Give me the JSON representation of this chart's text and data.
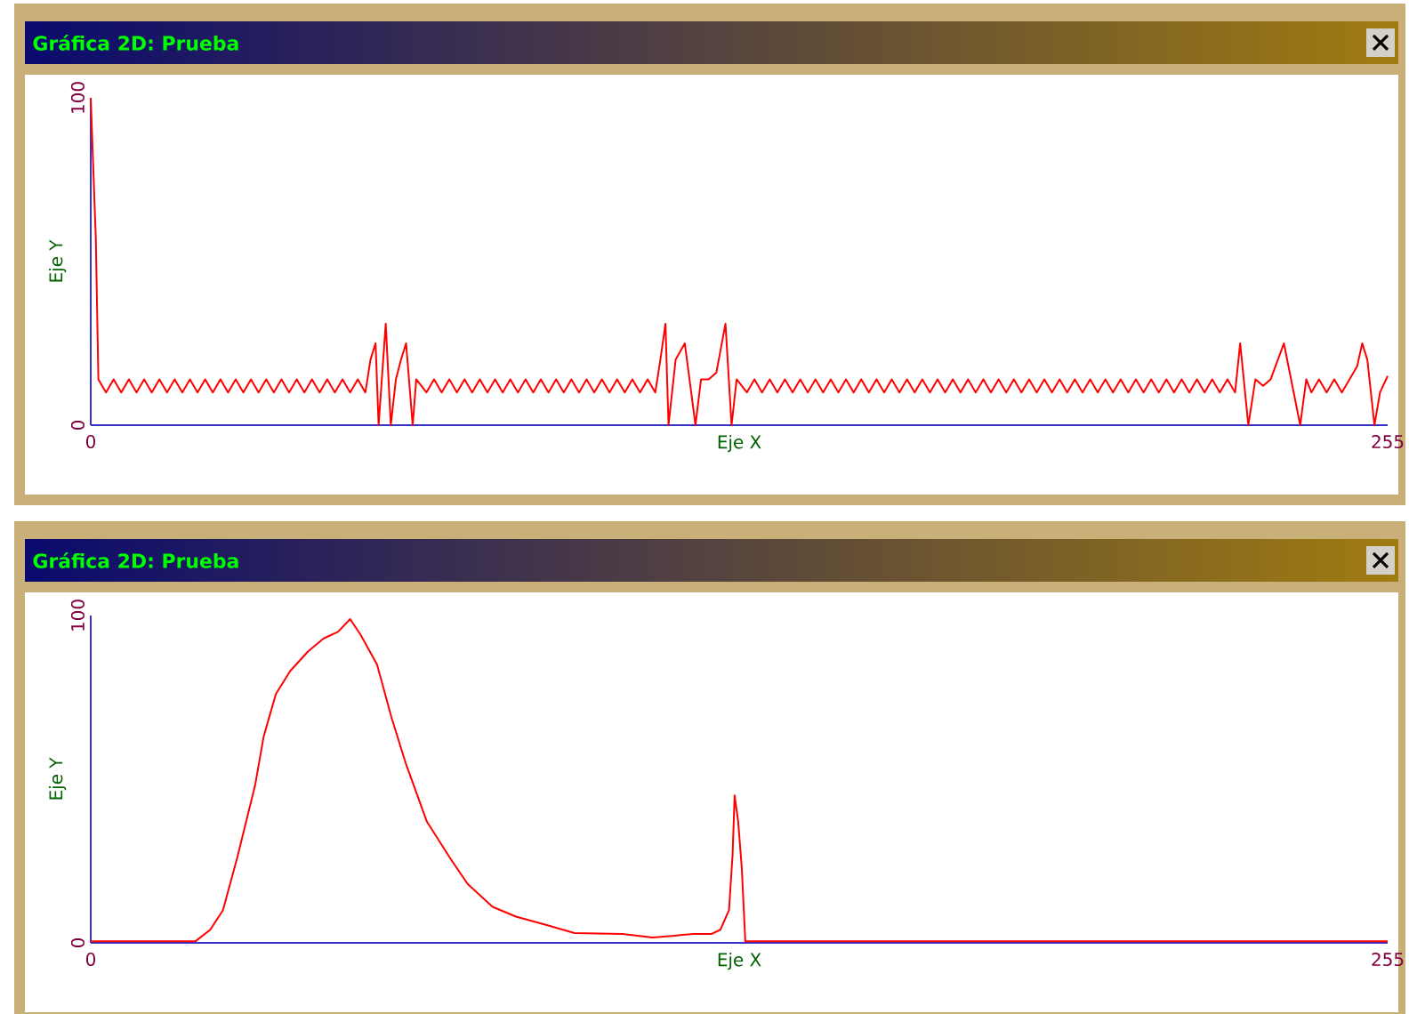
{
  "chart_data": [
    {
      "type": "line",
      "title": "Gráfica 2D: Prueba",
      "xlabel": "Eje X",
      "ylabel": "Eje Y",
      "xlim": [
        0,
        255
      ],
      "ylim": [
        0,
        100
      ],
      "xticks": [
        0,
        255
      ],
      "yticks": [
        0,
        100
      ],
      "series": [
        {
          "color": "#ff0000",
          "x": [
            0,
            1,
            1.5,
            3,
            4.5,
            6,
            7.5,
            9,
            10.5,
            12,
            13.5,
            15,
            16.5,
            18,
            19.5,
            21,
            22.5,
            24,
            25.5,
            27,
            28.5,
            30,
            31.5,
            33,
            34.5,
            36,
            37.5,
            39,
            40.5,
            42,
            43.5,
            45,
            46.5,
            48,
            49.5,
            51,
            52.5,
            54,
            55,
            56,
            56.6,
            57.5,
            58,
            59,
            60,
            61,
            62,
            63.3,
            64,
            66,
            67.5,
            69,
            70.5,
            72,
            73.5,
            75,
            76.5,
            78,
            79.5,
            81,
            82.5,
            84,
            85.5,
            87,
            88.5,
            90,
            91.5,
            93,
            94.5,
            96,
            97.5,
            99,
            100.5,
            102,
            103.5,
            105,
            106.5,
            108,
            109.5,
            111,
            112,
            113,
            113.6,
            115,
            116.8,
            118.9,
            120,
            121.5,
            123,
            124.8,
            126,
            127,
            129,
            130.5,
            132,
            133.5,
            135,
            136.5,
            138,
            139.5,
            141,
            142.5,
            144,
            145.5,
            147,
            148.5,
            150,
            151.5,
            153,
            154.5,
            156,
            157.5,
            159,
            160.5,
            162,
            163.5,
            165,
            166.5,
            168,
            169.5,
            171,
            172.5,
            174,
            175.5,
            177,
            178.5,
            180,
            181.5,
            183,
            184.5,
            186,
            187.5,
            189,
            190.5,
            192,
            193.5,
            195,
            196.5,
            198,
            199.5,
            201,
            202.5,
            204,
            205.5,
            207,
            208.5,
            210,
            211.5,
            213,
            214.5,
            216,
            217.5,
            219,
            220.5,
            222,
            223.5,
            225,
            226,
            227.6,
            229,
            230.5,
            232,
            234.6,
            237.8,
            239,
            240,
            241.5,
            243,
            244.5,
            246,
            247.5,
            249,
            250,
            251,
            252.4,
            253.5,
            255
          ],
          "values": [
            100,
            57,
            14,
            10,
            14,
            10,
            14,
            10,
            14,
            10,
            14,
            10,
            14,
            10,
            14,
            10,
            14,
            10,
            14,
            10,
            14,
            10,
            14,
            10,
            14,
            10,
            14,
            10,
            14,
            10,
            14,
            10,
            14,
            10,
            14,
            10,
            14,
            10,
            20,
            25,
            0,
            20,
            31,
            0,
            14,
            20,
            25,
            0,
            14,
            10,
            14,
            10,
            14,
            10,
            14,
            10,
            14,
            10,
            14,
            10,
            14,
            10,
            14,
            10,
            14,
            10,
            14,
            10,
            14,
            10,
            14,
            10,
            14,
            10,
            14,
            10,
            14,
            10,
            14,
            10,
            20,
            31,
            0,
            20,
            25,
            0,
            14,
            14,
            16,
            31,
            0,
            14,
            10,
            14,
            10,
            14,
            10,
            14,
            10,
            14,
            10,
            14,
            10,
            14,
            10,
            14,
            10,
            14,
            10,
            14,
            10,
            14,
            10,
            14,
            10,
            14,
            10,
            14,
            10,
            14,
            10,
            14,
            10,
            14,
            10,
            14,
            10,
            14,
            10,
            14,
            10,
            14,
            10,
            14,
            10,
            14,
            10,
            14,
            10,
            14,
            10,
            14,
            10,
            14,
            10,
            14,
            10,
            14,
            10,
            14,
            10,
            14,
            10,
            14,
            10,
            14,
            10,
            25,
            0,
            14,
            12,
            14,
            25,
            0,
            14,
            10,
            14,
            10,
            14,
            10,
            14,
            18,
            25,
            20,
            0,
            10,
            15
          ]
        }
      ]
    },
    {
      "type": "line",
      "title": "Gráfica 2D: Prueba",
      "xlabel": "Eje X",
      "ylabel": "Eje Y",
      "xlim": [
        0,
        255
      ],
      "ylim": [
        0,
        100
      ],
      "xticks": [
        0,
        255
      ],
      "yticks": [
        0,
        100
      ],
      "series": [
        {
          "color": "#ff0000",
          "x": [
            0,
            20.6,
            23.5,
            26,
            28.8,
            32.3,
            34,
            36.4,
            39.2,
            42.7,
            45.8,
            48.6,
            51,
            53.1,
            56.3,
            59.1,
            61.9,
            66.1,
            70.6,
            74.1,
            79,
            83.6,
            89.5,
            95.1,
            104.5,
            110.5,
            118.5,
            122,
            123.8,
            125.5,
            126.2,
            126.6,
            127.3,
            128,
            128.7,
            255
          ],
          "values": [
            0.5,
            0.5,
            4,
            10,
            26,
            48,
            63,
            76,
            83,
            89,
            93,
            95,
            98.9,
            94,
            85,
            69,
            55,
            37,
            26,
            18,
            11,
            8,
            5.5,
            3,
            2.7,
            1.6,
            2.7,
            2.7,
            4,
            10,
            27,
            45,
            37,
            23,
            0.5,
            0.5
          ]
        }
      ]
    }
  ]
}
